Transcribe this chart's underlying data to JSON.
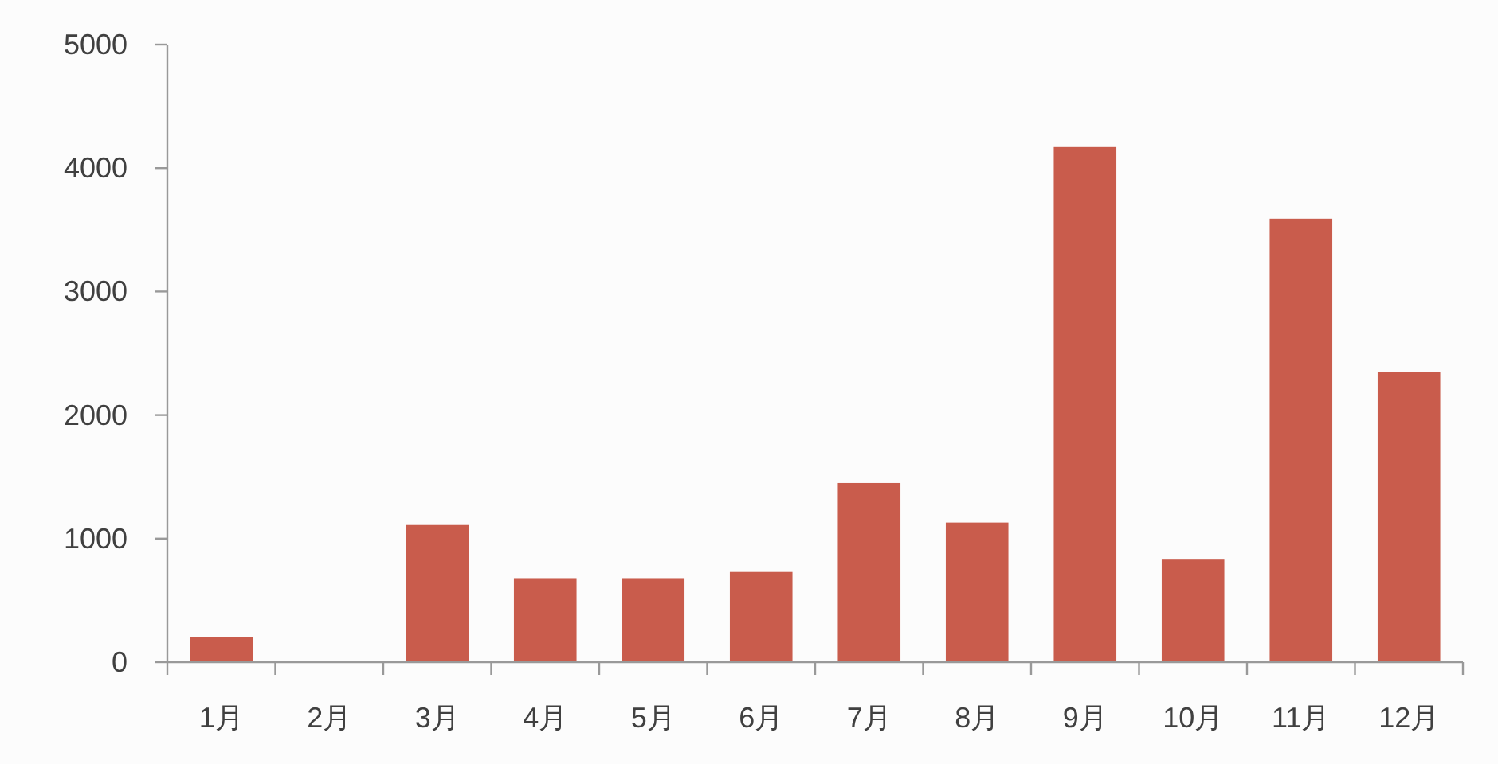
{
  "chart_data": {
    "type": "bar",
    "categories": [
      "1月",
      "2月",
      "3月",
      "4月",
      "5月",
      "6月",
      "7月",
      "8月",
      "9月",
      "10月",
      "11月",
      "12月"
    ],
    "values": [
      200,
      0,
      1110,
      680,
      680,
      730,
      1450,
      1130,
      4170,
      830,
      3590,
      2350
    ],
    "color": "#c95c4c",
    "ylim": [
      0,
      5000
    ],
    "yticks": [
      0,
      1000,
      2000,
      3000,
      4000,
      5000
    ],
    "grid": false
  }
}
